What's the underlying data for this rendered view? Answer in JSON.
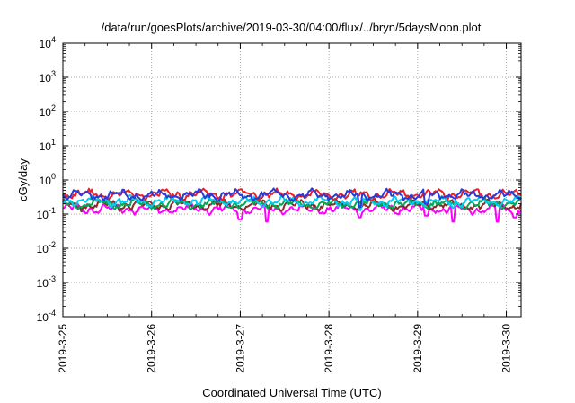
{
  "chart_data": {
    "type": "line",
    "title": "/data/run/goesPlots/archive/2019-03-30/04:00/flux/../bryn/5daysMoon.plot",
    "xlabel": "Coordinated Universal Time (UTC)",
    "ylabel": "cGy/day",
    "yscale": "log",
    "ylim": [
      0.0001,
      10000
    ],
    "y_ticks": [
      {
        "exp": "-4",
        "base": "10"
      },
      {
        "exp": "-3",
        "base": "10"
      },
      {
        "exp": "-2",
        "base": "10"
      },
      {
        "exp": "-1",
        "base": "10"
      },
      {
        "exp": "0",
        "base": "10"
      },
      {
        "exp": "1",
        "base": "10"
      },
      {
        "exp": "2",
        "base": "10"
      },
      {
        "exp": "3",
        "base": "10"
      },
      {
        "exp": "4",
        "base": "10"
      }
    ],
    "x_tick_labels": [
      "2019-3-25",
      "2019-3-26",
      "2019-3-27",
      "2019-3-28",
      "2019-3-29",
      "2019-3-30"
    ],
    "xlim": [
      "2019-03-25T00:00",
      "2019-03-30T04:00"
    ],
    "grid": true,
    "series": [
      {
        "color": "#ff00ff",
        "level": 0.14,
        "dips": [
          [
            2.0,
            0.07
          ],
          [
            2.3,
            0.06
          ],
          [
            3.35,
            0.08
          ],
          [
            4.1,
            0.09
          ],
          [
            4.4,
            0.06
          ],
          [
            4.9,
            0.06
          ],
          [
            5.1,
            0.08
          ]
        ]
      },
      {
        "color": "#8b2a2a",
        "level": 0.18,
        "dips": []
      },
      {
        "color": "#00aa55",
        "level": 0.2,
        "dips": []
      },
      {
        "color": "#00ccee",
        "level": 0.24,
        "dips": [
          [
            3.35,
            0.13
          ],
          [
            4.4,
            0.15
          ]
        ]
      },
      {
        "color": "#e8202a",
        "level": 0.38,
        "dips": []
      },
      {
        "color": "#2a3ad8",
        "level": 0.36,
        "dips": [
          [
            3.35,
            0.16
          ],
          [
            4.1,
            0.2
          ]
        ]
      }
    ]
  }
}
